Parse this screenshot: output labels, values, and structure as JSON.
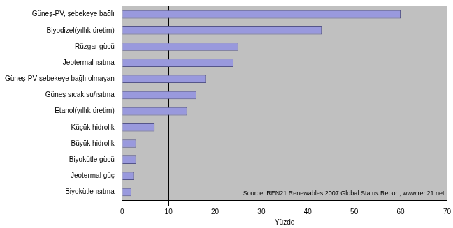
{
  "chart_data": {
    "type": "bar",
    "orientation": "horizontal",
    "categories": [
      "Güneş-PV, şebekeye bağlı",
      "Biyodizel(yıllık üretim)",
      "Rüzgar gücü",
      "Jeotermal ısıtma",
      "Güneş-PV şebekeye bağlı olmayan",
      "Güneş sıcak su/ısıtma",
      "Etanol(yıllık üretim)",
      "Küçük hidrolik",
      "Büyük hidrolik",
      "Biyokütle gücü",
      "Jeotermal güç",
      "Biyokütle ısıtma"
    ],
    "values": [
      60,
      43,
      25,
      24,
      18,
      16,
      14,
      7,
      3,
      3,
      2.5,
      2
    ],
    "color": "#9999dd",
    "x_label": "Yüzde",
    "annotation": "Source: REN21 Renewables 2007 Global Status Report, www.ren21.net",
    "xlim": [
      0,
      70
    ],
    "xticks": [
      0,
      10,
      20,
      30,
      40,
      50,
      60,
      70
    ],
    "grid": true
  }
}
